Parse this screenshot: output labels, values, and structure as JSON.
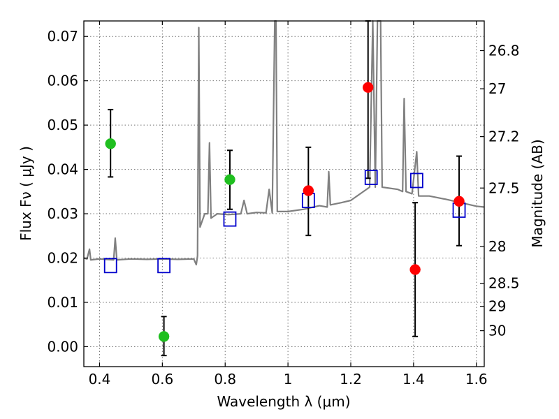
{
  "chart_data": {
    "type": "scatter",
    "title": "",
    "xlabel": "Wavelength  λ (μm)",
    "ylabel": "Flux  Fν  ( μJy )",
    "ylabel_right": "Magnitude (AB)",
    "xlim": [
      0.35,
      1.625
    ],
    "ylim": [
      -0.0045,
      0.0735
    ],
    "grid": true,
    "x_ticks": [
      0.4,
      0.6,
      0.8,
      1.0,
      1.2,
      1.4,
      1.6
    ],
    "x_tick_labels": [
      "0.4",
      "0.6",
      "0.8",
      "1",
      "1.2",
      "1.4",
      "1.6"
    ],
    "y_ticks": [
      0.0,
      0.01,
      0.02,
      0.03,
      0.04,
      0.05,
      0.06,
      0.07
    ],
    "y_tick_labels": [
      "0.00",
      "0.01",
      "0.02",
      "0.03",
      "0.04",
      "0.05",
      "0.06",
      "0.07"
    ],
    "right_ticks": [
      {
        "label": "26.8",
        "flux": 0.0668
      },
      {
        "label": "27",
        "flux": 0.0582
      },
      {
        "label": "27.2",
        "flux": 0.0474
      },
      {
        "label": "27.5",
        "flux": 0.0358
      },
      {
        "label": "28",
        "flux": 0.0226
      },
      {
        "label": "28.5",
        "flux": 0.0143
      },
      {
        "label": "29",
        "flux": 0.0091
      },
      {
        "label": "30",
        "flux": 0.0036
      }
    ],
    "colors": {
      "model_line": "#808080",
      "green_points": "#1fbf1f",
      "red_points": "#ff0000",
      "model_squares": "#0000cc",
      "errorbar": "#000000"
    },
    "series": [
      {
        "marker": "circle-green",
        "points": [
          {
            "x": 0.435,
            "y": 0.0458,
            "ylo": 0.0383,
            "yhi": 0.0535
          },
          {
            "x": 0.605,
            "y": 0.0023,
            "ylo": -0.002,
            "yhi": 0.0068
          },
          {
            "x": 0.815,
            "y": 0.0377,
            "ylo": 0.031,
            "yhi": 0.0443
          }
        ]
      },
      {
        "marker": "circle-red",
        "points": [
          {
            "x": 1.065,
            "y": 0.0352,
            "ylo": 0.0251,
            "yhi": 0.045
          },
          {
            "x": 1.255,
            "y": 0.0585,
            "ylo": 0.038,
            "yhi": 0.0735
          },
          {
            "x": 1.405,
            "y": 0.0174,
            "ylo": 0.0023,
            "yhi": 0.0325
          },
          {
            "x": 1.545,
            "y": 0.0328,
            "ylo": 0.0228,
            "yhi": 0.043
          }
        ]
      },
      {
        "marker": "open-square",
        "points": [
          {
            "x": 0.435,
            "y": 0.0183
          },
          {
            "x": 0.605,
            "y": 0.0183
          },
          {
            "x": 0.815,
            "y": 0.0288
          },
          {
            "x": 1.065,
            "y": 0.033
          },
          {
            "x": 1.265,
            "y": 0.0382
          },
          {
            "x": 1.41,
            "y": 0.0375
          },
          {
            "x": 1.545,
            "y": 0.0308
          }
        ]
      },
      {
        "marker": "line",
        "points": [
          [
            0.35,
            0.02
          ],
          [
            0.36,
            0.0198
          ],
          [
            0.368,
            0.022
          ],
          [
            0.372,
            0.0196
          ],
          [
            0.4,
            0.0198
          ],
          [
            0.42,
            0.0197
          ],
          [
            0.445,
            0.0196
          ],
          [
            0.45,
            0.0245
          ],
          [
            0.455,
            0.0196
          ],
          [
            0.5,
            0.0198
          ],
          [
            0.55,
            0.0197
          ],
          [
            0.6,
            0.0198
          ],
          [
            0.65,
            0.0197
          ],
          [
            0.7,
            0.0198
          ],
          [
            0.708,
            0.0185
          ],
          [
            0.712,
            0.0205
          ],
          [
            0.716,
            0.072
          ],
          [
            0.72,
            0.027
          ],
          [
            0.735,
            0.03
          ],
          [
            0.745,
            0.03
          ],
          [
            0.75,
            0.046
          ],
          [
            0.755,
            0.029
          ],
          [
            0.775,
            0.03
          ],
          [
            0.81,
            0.0298
          ],
          [
            0.85,
            0.03
          ],
          [
            0.86,
            0.033
          ],
          [
            0.87,
            0.03
          ],
          [
            0.9,
            0.0303
          ],
          [
            0.93,
            0.0302
          ],
          [
            0.94,
            0.0355
          ],
          [
            0.95,
            0.0302
          ],
          [
            0.958,
            0.0735
          ],
          [
            0.962,
            0.0735
          ],
          [
            0.966,
            0.0305
          ],
          [
            1.0,
            0.0305
          ],
          [
            1.05,
            0.031
          ],
          [
            1.1,
            0.0318
          ],
          [
            1.125,
            0.0315
          ],
          [
            1.13,
            0.0395
          ],
          [
            1.135,
            0.032
          ],
          [
            1.17,
            0.0325
          ],
          [
            1.2,
            0.033
          ],
          [
            1.23,
            0.0345
          ],
          [
            1.26,
            0.036
          ],
          [
            1.27,
            0.0735
          ],
          [
            1.278,
            0.036
          ],
          [
            1.285,
            0.0735
          ],
          [
            1.295,
            0.0735
          ],
          [
            1.3,
            0.036
          ],
          [
            1.35,
            0.0355
          ],
          [
            1.365,
            0.035
          ],
          [
            1.37,
            0.056
          ],
          [
            1.376,
            0.035
          ],
          [
            1.395,
            0.0345
          ],
          [
            1.41,
            0.044
          ],
          [
            1.416,
            0.034
          ],
          [
            1.45,
            0.034
          ],
          [
            1.5,
            0.0333
          ],
          [
            1.55,
            0.0325
          ],
          [
            1.6,
            0.0317
          ],
          [
            1.625,
            0.0315
          ]
        ]
      }
    ]
  }
}
